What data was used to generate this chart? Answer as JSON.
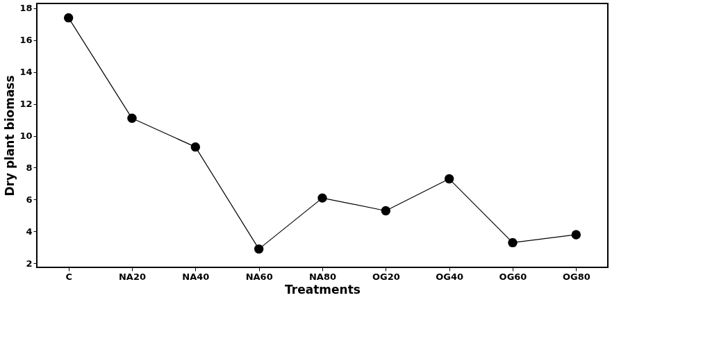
{
  "chart_data": {
    "type": "line",
    "xlabel": "Treatments",
    "ylabel": "Dry plant biomass",
    "categories": [
      "C",
      "NA20",
      "NA40",
      "NA60",
      "NA80",
      "OG20",
      "OG40",
      "OG60",
      "OG80"
    ],
    "series": [
      {
        "color": "#000000",
        "values": [
          17.4,
          11.1,
          9.3,
          2.9,
          6.1,
          5.3,
          7.3,
          3.3,
          3.8
        ]
      }
    ],
    "ylim": [
      1.75,
      18.3
    ],
    "yticks": [
      2,
      4,
      6,
      8,
      10,
      12,
      14,
      16,
      18
    ],
    "marker": "circle",
    "line_style": "solid",
    "grid": false
  }
}
